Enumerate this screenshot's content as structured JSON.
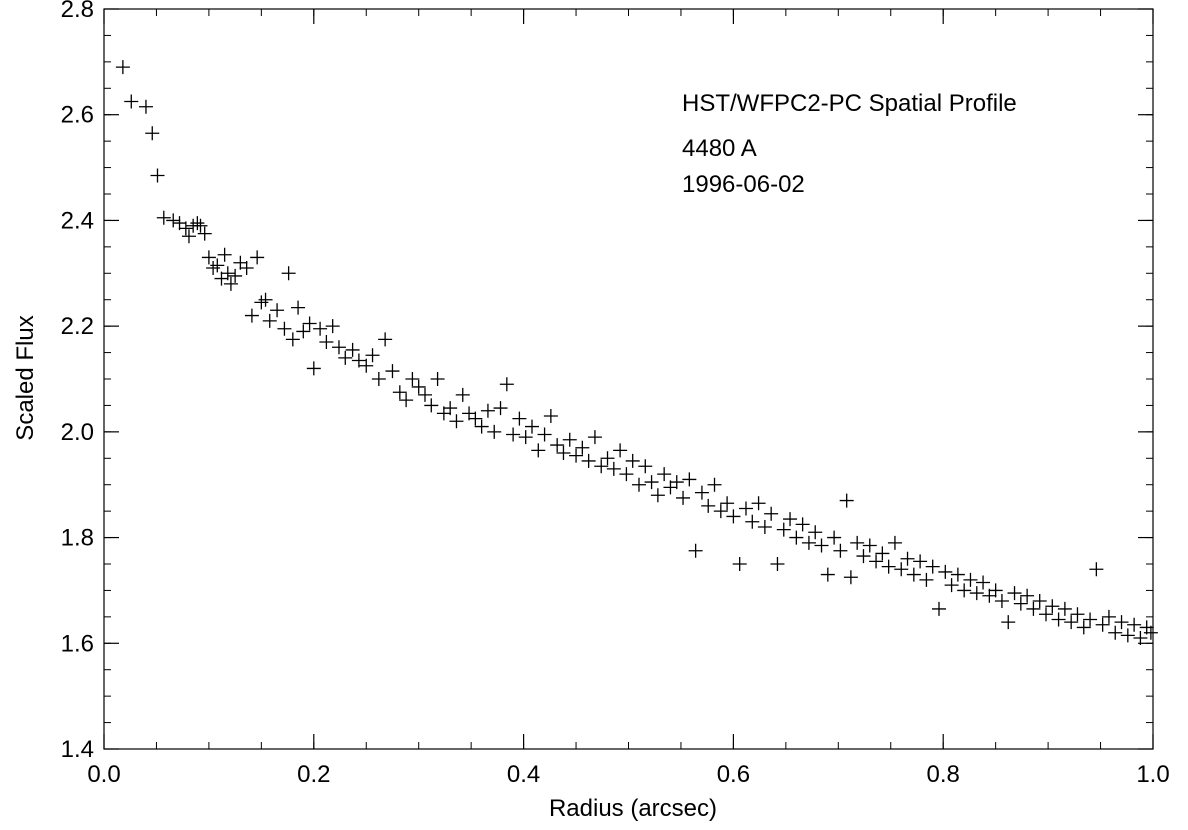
{
  "chart_data": {
    "type": "scatter",
    "marker": "plus",
    "xlabel": "Radius (arcsec)",
    "ylabel": "Scaled Flux",
    "xlim": [
      0.0,
      1.0
    ],
    "ylim": [
      1.4,
      2.8
    ],
    "x_ticks": [
      0.0,
      0.2,
      0.4,
      0.6,
      0.8,
      1.0
    ],
    "x_tick_labels": [
      "0.0",
      "0.2",
      "0.4",
      "0.6",
      "0.8",
      "1.0"
    ],
    "y_ticks": [
      1.4,
      1.6,
      1.8,
      2.0,
      2.2,
      2.4,
      2.6,
      2.8
    ],
    "y_tick_labels": [
      "1.4",
      "1.6",
      "1.8",
      "2.0",
      "2.2",
      "2.4",
      "2.6",
      "2.8"
    ],
    "x_minor_step": 0.05,
    "y_minor_step": 0.05,
    "grid": false,
    "legend": "none",
    "annotations": [
      "HST/WFPC2-PC Spatial Profile",
      "4480 A",
      "1996-06-02"
    ],
    "colors": {
      "marker": "#000000",
      "axes": "#000000",
      "background": "#ffffff"
    },
    "series": [
      {
        "points": [
          [
            0.018,
            2.69
          ],
          [
            0.026,
            2.625
          ],
          [
            0.04,
            2.615
          ],
          [
            0.046,
            2.565
          ],
          [
            0.051,
            2.485
          ],
          [
            0.057,
            2.405
          ],
          [
            0.066,
            2.4
          ],
          [
            0.072,
            2.395
          ],
          [
            0.078,
            2.385
          ],
          [
            0.081,
            2.37
          ],
          [
            0.085,
            2.39
          ],
          [
            0.089,
            2.395
          ],
          [
            0.092,
            2.39
          ],
          [
            0.096,
            2.375
          ],
          [
            0.1,
            2.33
          ],
          [
            0.104,
            2.31
          ],
          [
            0.108,
            2.315
          ],
          [
            0.112,
            2.29
          ],
          [
            0.115,
            2.335
          ],
          [
            0.118,
            2.3
          ],
          [
            0.121,
            2.28
          ],
          [
            0.125,
            2.295
          ],
          [
            0.13,
            2.32
          ],
          [
            0.136,
            2.31
          ],
          [
            0.141,
            2.22
          ],
          [
            0.146,
            2.33
          ],
          [
            0.15,
            2.245
          ],
          [
            0.154,
            2.25
          ],
          [
            0.158,
            2.21
          ],
          [
            0.165,
            2.23
          ],
          [
            0.172,
            2.195
          ],
          [
            0.176,
            2.3
          ],
          [
            0.18,
            2.175
          ],
          [
            0.185,
            2.235
          ],
          [
            0.19,
            2.19
          ],
          [
            0.196,
            2.205
          ],
          [
            0.2,
            2.12
          ],
          [
            0.206,
            2.195
          ],
          [
            0.212,
            2.17
          ],
          [
            0.218,
            2.2
          ],
          [
            0.224,
            2.16
          ],
          [
            0.23,
            2.14
          ],
          [
            0.237,
            2.155
          ],
          [
            0.243,
            2.135
          ],
          [
            0.25,
            2.125
          ],
          [
            0.256,
            2.145
          ],
          [
            0.262,
            2.1
          ],
          [
            0.268,
            2.175
          ],
          [
            0.275,
            2.115
          ],
          [
            0.282,
            2.075
          ],
          [
            0.288,
            2.06
          ],
          [
            0.294,
            2.1
          ],
          [
            0.3,
            2.085
          ],
          [
            0.306,
            2.07
          ],
          [
            0.312,
            2.05
          ],
          [
            0.318,
            2.1
          ],
          [
            0.324,
            2.035
          ],
          [
            0.33,
            2.045
          ],
          [
            0.336,
            2.02
          ],
          [
            0.342,
            2.07
          ],
          [
            0.348,
            2.035
          ],
          [
            0.354,
            2.025
          ],
          [
            0.36,
            2.01
          ],
          [
            0.366,
            2.04
          ],
          [
            0.372,
            2.0
          ],
          [
            0.378,
            2.045
          ],
          [
            0.384,
            2.09
          ],
          [
            0.39,
            1.995
          ],
          [
            0.396,
            2.025
          ],
          [
            0.402,
            1.99
          ],
          [
            0.408,
            2.01
          ],
          [
            0.414,
            1.965
          ],
          [
            0.42,
            1.995
          ],
          [
            0.426,
            2.03
          ],
          [
            0.432,
            1.975
          ],
          [
            0.438,
            1.96
          ],
          [
            0.444,
            1.985
          ],
          [
            0.45,
            1.955
          ],
          [
            0.456,
            1.97
          ],
          [
            0.462,
            1.945
          ],
          [
            0.468,
            1.99
          ],
          [
            0.474,
            1.935
          ],
          [
            0.48,
            1.95
          ],
          [
            0.486,
            1.93
          ],
          [
            0.492,
            1.965
          ],
          [
            0.498,
            1.92
          ],
          [
            0.504,
            1.945
          ],
          [
            0.51,
            1.9
          ],
          [
            0.516,
            1.935
          ],
          [
            0.522,
            1.905
          ],
          [
            0.528,
            1.88
          ],
          [
            0.534,
            1.92
          ],
          [
            0.54,
            1.895
          ],
          [
            0.546,
            1.905
          ],
          [
            0.552,
            1.875
          ],
          [
            0.558,
            1.91
          ],
          [
            0.564,
            1.775
          ],
          [
            0.57,
            1.885
          ],
          [
            0.576,
            1.86
          ],
          [
            0.582,
            1.9
          ],
          [
            0.588,
            1.85
          ],
          [
            0.594,
            1.865
          ],
          [
            0.6,
            1.84
          ],
          [
            0.606,
            1.75
          ],
          [
            0.612,
            1.855
          ],
          [
            0.618,
            1.83
          ],
          [
            0.624,
            1.865
          ],
          [
            0.63,
            1.82
          ],
          [
            0.636,
            1.845
          ],
          [
            0.642,
            1.75
          ],
          [
            0.648,
            1.815
          ],
          [
            0.654,
            1.835
          ],
          [
            0.66,
            1.8
          ],
          [
            0.666,
            1.825
          ],
          [
            0.672,
            1.79
          ],
          [
            0.678,
            1.81
          ],
          [
            0.684,
            1.785
          ],
          [
            0.69,
            1.73
          ],
          [
            0.696,
            1.8
          ],
          [
            0.702,
            1.775
          ],
          [
            0.708,
            1.87
          ],
          [
            0.712,
            1.725
          ],
          [
            0.718,
            1.79
          ],
          [
            0.724,
            1.765
          ],
          [
            0.73,
            1.785
          ],
          [
            0.736,
            1.755
          ],
          [
            0.742,
            1.77
          ],
          [
            0.748,
            1.745
          ],
          [
            0.754,
            1.79
          ],
          [
            0.76,
            1.74
          ],
          [
            0.766,
            1.76
          ],
          [
            0.772,
            1.73
          ],
          [
            0.778,
            1.755
          ],
          [
            0.784,
            1.72
          ],
          [
            0.79,
            1.745
          ],
          [
            0.796,
            1.665
          ],
          [
            0.802,
            1.735
          ],
          [
            0.808,
            1.71
          ],
          [
            0.814,
            1.73
          ],
          [
            0.82,
            1.7
          ],
          [
            0.826,
            1.72
          ],
          [
            0.832,
            1.695
          ],
          [
            0.838,
            1.715
          ],
          [
            0.844,
            1.69
          ],
          [
            0.85,
            1.7
          ],
          [
            0.856,
            1.68
          ],
          [
            0.862,
            1.64
          ],
          [
            0.868,
            1.695
          ],
          [
            0.874,
            1.675
          ],
          [
            0.88,
            1.69
          ],
          [
            0.886,
            1.665
          ],
          [
            0.892,
            1.68
          ],
          [
            0.898,
            1.655
          ],
          [
            0.904,
            1.67
          ],
          [
            0.91,
            1.645
          ],
          [
            0.916,
            1.665
          ],
          [
            0.922,
            1.64
          ],
          [
            0.928,
            1.655
          ],
          [
            0.934,
            1.63
          ],
          [
            0.94,
            1.645
          ],
          [
            0.946,
            1.74
          ],
          [
            0.952,
            1.635
          ],
          [
            0.958,
            1.65
          ],
          [
            0.964,
            1.62
          ],
          [
            0.97,
            1.64
          ],
          [
            0.976,
            1.615
          ],
          [
            0.982,
            1.635
          ],
          [
            0.988,
            1.61
          ],
          [
            0.994,
            1.63
          ],
          [
            0.998,
            1.62
          ]
        ]
      }
    ]
  }
}
